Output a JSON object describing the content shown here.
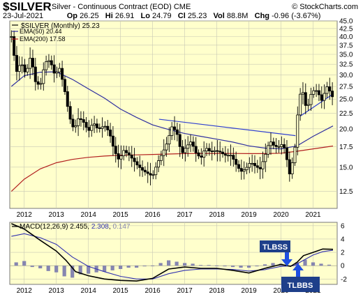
{
  "header": {
    "symbol": "$SILVER",
    "description": "Silver - Continuous Contract (EOD)",
    "exchange": "CME",
    "credit": "© StockCharts.com",
    "date": "23-Jul-2021",
    "open_label": "Op",
    "open": "26.25",
    "high_label": "Hi",
    "high": "26.91",
    "low_label": "Lo",
    "low": "24.79",
    "close_label": "Cl",
    "close": "25.23",
    "volume_label": "Vol",
    "volume": "88.8M",
    "change_label": "Chg",
    "change": "-0.96 (-3.67%)"
  },
  "colors": {
    "panel_bg": "#ffffcc",
    "price": "#000000",
    "ema50": "#2f2fa0",
    "ema200": "#b21f1f",
    "trendline": "#2f3fd0",
    "macd": "#000000",
    "signal": "#3030b0",
    "histogram": "#8585b0",
    "annotation_bg": "#1e3f8a",
    "annotation_text": "#ffffff"
  },
  "legend": {
    "price_label": "$SILVER (Monthly) 25.23",
    "ema50_label": "EMA(50) 20.44",
    "ema200_label": "EMA(200) 17.58"
  },
  "macd_panel": {
    "label": "MACD(12,26,9)",
    "macd_value": "2.455",
    "signal_value": "2.308",
    "hist_value": "0.147"
  },
  "annotations": {
    "tlbss": "TLBSS",
    "tlbbs": "TLBBS"
  },
  "chart_data": [
    {
      "type": "candlestick",
      "title": "$SILVER (Monthly)",
      "x_ticks": [
        "2012",
        "2013",
        "2014",
        "2015",
        "2016",
        "2017",
        "2018",
        "2019",
        "2020",
        "2021"
      ],
      "y_ticks": [
        "12.5",
        "15.0",
        "17.5",
        "20.0",
        "22.5",
        "25.0",
        "27.5",
        "30.0",
        "32.5",
        "35.0",
        "37.5",
        "40.0",
        "42.5",
        "45.0"
      ],
      "y_scale": "log",
      "ylim": [
        11.0,
        45.0
      ],
      "xlim": [
        2011.55,
        2021.75
      ],
      "price_anchors": [
        [
          2011.6,
          40.0
        ],
        [
          2011.75,
          30.5
        ],
        [
          2011.9,
          33.0
        ],
        [
          2012.05,
          30.0
        ],
        [
          2012.2,
          34.5
        ],
        [
          2012.35,
          28.5
        ],
        [
          2012.5,
          27.5
        ],
        [
          2012.65,
          33.0
        ],
        [
          2012.8,
          33.5
        ],
        [
          2012.95,
          30.0
        ],
        [
          2013.1,
          31.5
        ],
        [
          2013.25,
          27.0
        ],
        [
          2013.4,
          22.0
        ],
        [
          2013.55,
          19.8
        ],
        [
          2013.7,
          21.8
        ],
        [
          2013.85,
          21.0
        ],
        [
          2014.0,
          19.6
        ],
        [
          2014.15,
          21.0
        ],
        [
          2014.3,
          19.9
        ],
        [
          2014.5,
          20.5
        ],
        [
          2014.65,
          19.5
        ],
        [
          2014.8,
          17.0
        ],
        [
          2014.95,
          15.8
        ],
        [
          2015.1,
          17.0
        ],
        [
          2015.3,
          16.3
        ],
        [
          2015.5,
          15.3
        ],
        [
          2015.7,
          14.6
        ],
        [
          2015.85,
          14.3
        ],
        [
          2016.0,
          14.0
        ],
        [
          2016.15,
          15.5
        ],
        [
          2016.3,
          16.6
        ],
        [
          2016.45,
          18.0
        ],
        [
          2016.6,
          20.3
        ],
        [
          2016.75,
          19.5
        ],
        [
          2016.9,
          16.5
        ],
        [
          2017.05,
          17.5
        ],
        [
          2017.2,
          18.2
        ],
        [
          2017.35,
          16.7
        ],
        [
          2017.5,
          16.0
        ],
        [
          2017.65,
          17.4
        ],
        [
          2017.8,
          16.8
        ],
        [
          2017.95,
          17.0
        ],
        [
          2018.1,
          16.8
        ],
        [
          2018.25,
          16.4
        ],
        [
          2018.45,
          16.4
        ],
        [
          2018.6,
          15.3
        ],
        [
          2018.75,
          14.5
        ],
        [
          2018.9,
          14.8
        ],
        [
          2019.05,
          15.6
        ],
        [
          2019.2,
          15.1
        ],
        [
          2019.35,
          14.8
        ],
        [
          2019.5,
          16.3
        ],
        [
          2019.65,
          18.3
        ],
        [
          2019.8,
          17.5
        ],
        [
          2019.95,
          17.5
        ],
        [
          2020.05,
          17.9
        ],
        [
          2020.15,
          16.8
        ],
        [
          2020.25,
          14.0
        ],
        [
          2020.35,
          15.5
        ],
        [
          2020.45,
          17.8
        ],
        [
          2020.55,
          24.4
        ],
        [
          2020.65,
          27.5
        ],
        [
          2020.75,
          23.8
        ],
        [
          2020.85,
          24.0
        ],
        [
          2020.95,
          26.3
        ],
        [
          2021.05,
          26.8
        ],
        [
          2021.15,
          26.5
        ],
        [
          2021.25,
          24.5
        ],
        [
          2021.35,
          26.1
        ],
        [
          2021.45,
          27.7
        ],
        [
          2021.55,
          26.0
        ],
        [
          2021.62,
          25.23
        ]
      ],
      "ema50": [
        [
          2011.6,
          27.5
        ],
        [
          2012.0,
          29.8
        ],
        [
          2012.5,
          30.6
        ],
        [
          2013.0,
          30.7
        ],
        [
          2013.5,
          29.0
        ],
        [
          2014.0,
          27.0
        ],
        [
          2014.5,
          25.2
        ],
        [
          2015.0,
          23.2
        ],
        [
          2015.5,
          21.8
        ],
        [
          2016.0,
          20.6
        ],
        [
          2016.5,
          19.9
        ],
        [
          2017.0,
          19.3
        ],
        [
          2017.5,
          18.9
        ],
        [
          2018.0,
          18.5
        ],
        [
          2018.5,
          18.1
        ],
        [
          2019.0,
          17.6
        ],
        [
          2019.5,
          17.3
        ],
        [
          2020.0,
          17.2
        ],
        [
          2020.5,
          17.6
        ],
        [
          2021.0,
          18.9
        ],
        [
          2021.62,
          20.44
        ]
      ],
      "ema200": [
        [
          2011.6,
          12.5
        ],
        [
          2012.0,
          13.7
        ],
        [
          2012.5,
          14.8
        ],
        [
          2013.0,
          15.5
        ],
        [
          2013.5,
          15.9
        ],
        [
          2014.0,
          16.15
        ],
        [
          2014.5,
          16.3
        ],
        [
          2015.0,
          16.4
        ],
        [
          2015.5,
          16.45
        ],
        [
          2016.0,
          16.5
        ],
        [
          2016.5,
          16.55
        ],
        [
          2017.0,
          16.6
        ],
        [
          2017.5,
          16.62
        ],
        [
          2018.0,
          16.63
        ],
        [
          2018.5,
          16.62
        ],
        [
          2019.0,
          16.6
        ],
        [
          2019.5,
          16.6
        ],
        [
          2020.0,
          16.65
        ],
        [
          2020.5,
          16.9
        ],
        [
          2021.0,
          17.2
        ],
        [
          2021.62,
          17.58
        ]
      ],
      "trendlines": [
        [
          [
            2016.2,
            21.5
          ],
          [
            2020.45,
            19.0
          ]
        ],
        [
          [
            2020.6,
            22.0
          ],
          [
            2021.6,
            25.9
          ]
        ]
      ]
    },
    {
      "type": "line",
      "title": "MACD(12,26,9)",
      "y_ticks": [
        "6",
        "4",
        "2",
        "0",
        "-2"
      ],
      "ylim": [
        -2.8,
        6.5
      ],
      "series": [
        {
          "name": "MACD(12,26,9)",
          "values": [
            [
              2011.6,
              6.3
            ],
            [
              2012.0,
              5.5
            ],
            [
              2012.5,
              3.8
            ],
            [
              2013.0,
              2.2
            ],
            [
              2013.3,
              0.8
            ],
            [
              2013.6,
              -0.9
            ],
            [
              2014.0,
              -1.5
            ],
            [
              2014.5,
              -2.0
            ],
            [
              2015.0,
              -2.2
            ],
            [
              2015.5,
              -2.3
            ],
            [
              2016.0,
              -1.9
            ],
            [
              2016.5,
              -0.5
            ],
            [
              2017.0,
              -0.2
            ],
            [
              2017.5,
              -0.4
            ],
            [
              2018.0,
              -0.4
            ],
            [
              2018.5,
              -0.7
            ],
            [
              2019.0,
              -1.1
            ],
            [
              2019.5,
              -0.4
            ],
            [
              2020.0,
              0.2
            ],
            [
              2020.3,
              -0.1
            ],
            [
              2020.5,
              0.5
            ],
            [
              2020.7,
              1.5
            ],
            [
              2021.0,
              2.0
            ],
            [
              2021.3,
              2.5
            ],
            [
              2021.62,
              2.455
            ]
          ]
        },
        {
          "name": "signal",
          "values": [
            [
              2011.6,
              4.4
            ],
            [
              2012.0,
              4.8
            ],
            [
              2012.5,
              4.2
            ],
            [
              2013.0,
              3.2
            ],
            [
              2013.5,
              1.3
            ],
            [
              2014.0,
              -0.1
            ],
            [
              2014.5,
              -0.9
            ],
            [
              2015.0,
              -1.6
            ],
            [
              2015.5,
              -2.0
            ],
            [
              2016.0,
              -2.0
            ],
            [
              2016.5,
              -1.2
            ],
            [
              2017.0,
              -0.7
            ],
            [
              2017.5,
              -0.5
            ],
            [
              2018.0,
              -0.5
            ],
            [
              2018.5,
              -0.55
            ],
            [
              2019.0,
              -0.8
            ],
            [
              2019.5,
              -0.6
            ],
            [
              2020.0,
              -0.1
            ],
            [
              2020.4,
              0.0
            ],
            [
              2020.7,
              0.8
            ],
            [
              2021.0,
              1.6
            ],
            [
              2021.3,
              2.1
            ],
            [
              2021.62,
              2.308
            ]
          ]
        }
      ],
      "histogram": [
        [
          2011.75,
          0.5
        ],
        [
          2012.0,
          0.7
        ],
        [
          2012.25,
          -0.2
        ],
        [
          2012.5,
          -0.4
        ],
        [
          2012.75,
          -0.8
        ],
        [
          2013.0,
          -1.0
        ],
        [
          2013.25,
          -1.6
        ],
        [
          2013.5,
          -1.8
        ],
        [
          2013.75,
          -1.3
        ],
        [
          2014.0,
          -1.2
        ],
        [
          2014.25,
          -1.0
        ],
        [
          2014.5,
          -0.9
        ],
        [
          2014.75,
          -0.7
        ],
        [
          2015.0,
          -0.5
        ],
        [
          2015.25,
          -0.3
        ],
        [
          2015.5,
          -0.3
        ],
        [
          2015.75,
          -0.1
        ],
        [
          2016.0,
          0.0
        ],
        [
          2016.25,
          0.4
        ],
        [
          2016.5,
          0.8
        ],
        [
          2016.75,
          0.6
        ],
        [
          2017.0,
          0.4
        ],
        [
          2017.25,
          0.3
        ],
        [
          2017.5,
          0.1
        ],
        [
          2017.75,
          0.1
        ],
        [
          2018.0,
          0.0
        ],
        [
          2018.25,
          -0.1
        ],
        [
          2018.5,
          -0.2
        ],
        [
          2018.75,
          -0.3
        ],
        [
          2019.0,
          -0.3
        ],
        [
          2019.25,
          -0.1
        ],
        [
          2019.5,
          0.2
        ],
        [
          2019.75,
          0.4
        ],
        [
          2020.0,
          0.3
        ],
        [
          2020.25,
          -0.1
        ],
        [
          2020.5,
          0.5
        ],
        [
          2020.75,
          0.9
        ],
        [
          2021.0,
          0.5
        ],
        [
          2021.25,
          0.3
        ],
        [
          2021.5,
          0.15
        ]
      ]
    }
  ]
}
